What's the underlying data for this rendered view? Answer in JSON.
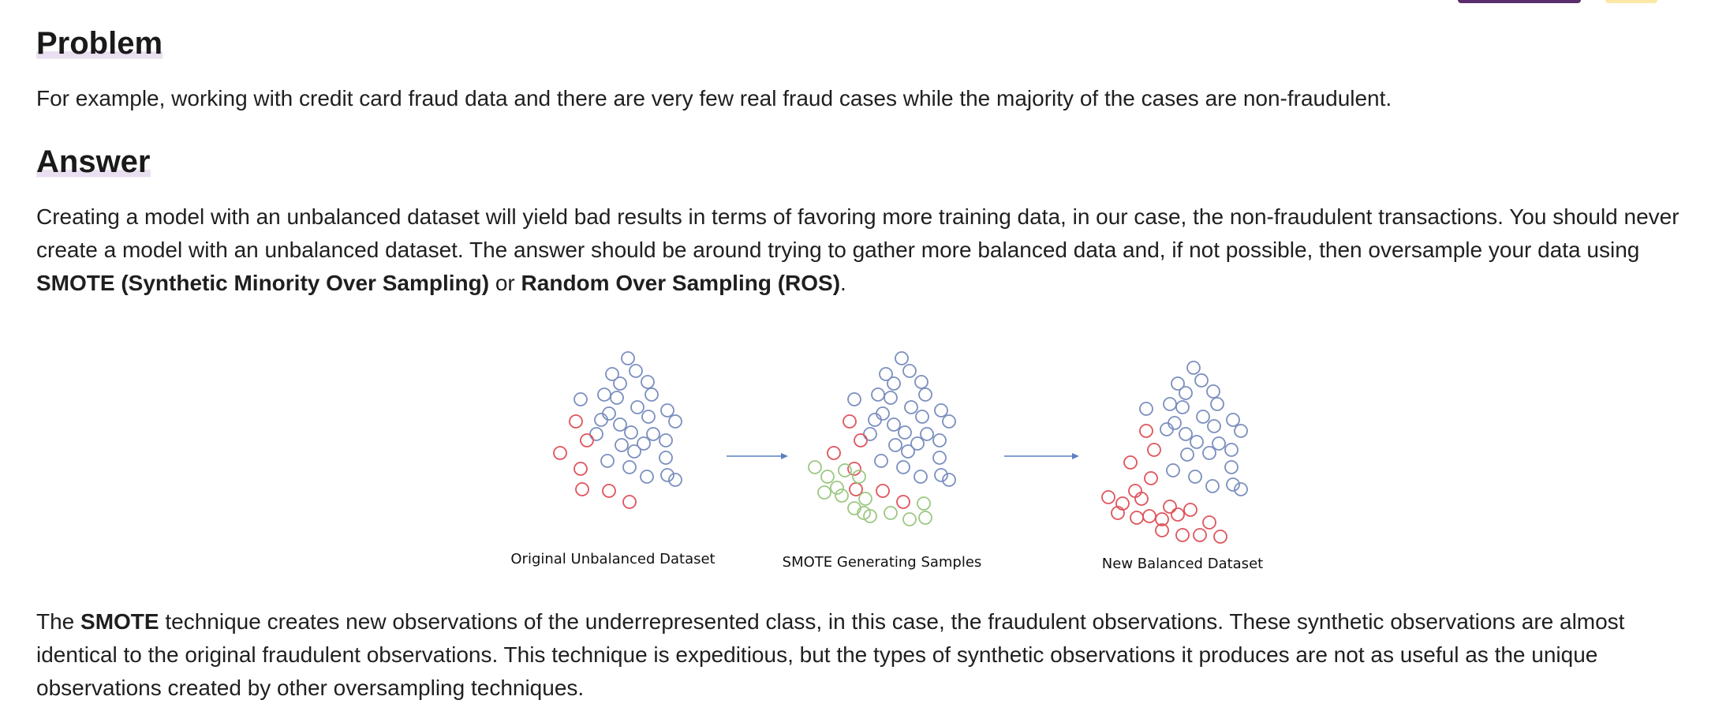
{
  "problem": {
    "heading": "Problem",
    "text": "For example, working with credit card fraud data and there are very few real fraud cases while the majority of the cases are non-fraudulent."
  },
  "answer": {
    "heading": "Answer",
    "text_1": "Creating a model with an unbalanced dataset will yield bad results in terms of favoring more training data, in our case, the non-fraudulent transactions. You should never create a model with an unbalanced dataset. The answer should be around trying to gather more balanced data and, if not possible, then oversample your data using ",
    "term_smote": "SMOTE (Synthetic Minority Over Sampling)",
    "text_or": " or ",
    "term_ros": "Random Over Sampling (ROS)",
    "text_end": "."
  },
  "figure": {
    "colors": {
      "majority": "#7b8fbf",
      "minority": "#e0545c",
      "synthetic": "#9cc883",
      "arrow": "#5b7fc4"
    },
    "captions": {
      "original": "Original Unbalanced Dataset",
      "smote": "SMOTE Generating Samples",
      "balanced": "New Balanced Dataset"
    }
  },
  "smote_paragraph": {
    "text_1": "The ",
    "term": "SMOTE",
    "text_2": " technique creates new observations of the underrepresented class, in this case, the fraudulent observations. These synthetic observations are almost identical to the original fraudulent observations. This technique is expeditious, but the types of synthetic observations it produces are not as useful as the unique observations created by other oversampling techniques."
  }
}
